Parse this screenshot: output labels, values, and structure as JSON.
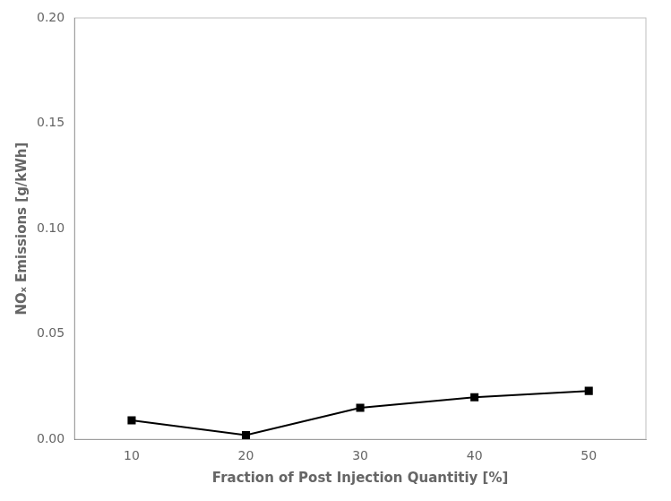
{
  "chart_data": {
    "type": "line",
    "x": [
      10,
      20,
      30,
      40,
      50
    ],
    "values": [
      0.009,
      0.002,
      0.015,
      0.02,
      0.023
    ],
    "xlabel": "Fraction of Post Injection Quantitiy [%]",
    "ylabel": "NOₓ Emissions [g/kWh]",
    "xlim": [
      5,
      55
    ],
    "ylim": [
      0.0,
      0.2
    ],
    "xticks": [
      10,
      20,
      30,
      40,
      50
    ],
    "yticks": [
      {
        "value": 0,
        "label": "0.00"
      },
      0.05,
      {
        "value": 0.1,
        "label": "0.10"
      },
      0.15,
      {
        "value": 0.2,
        "label": "0.20"
      }
    ],
    "color": "#000000",
    "marker": "square",
    "grid": false
  }
}
